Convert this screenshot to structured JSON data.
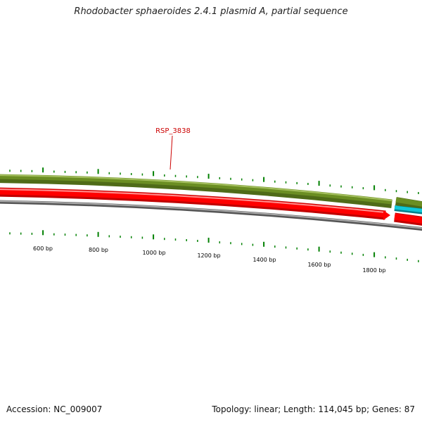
{
  "header": {
    "title": "Rhodobacter sphaeroides 2.4.1 plasmid A, partial sequence"
  },
  "footer": {
    "accession": "Accession: NC_009007",
    "summary": "Topology: linear; Length: 114,045 bp; Genes: 87"
  },
  "map": {
    "gene_label": "RSP_3838",
    "scale_labels": [
      "600 bp",
      "800 bp",
      "1000 bp",
      "1200 bp",
      "1400 bp",
      "1600 bp",
      "1800 bp"
    ],
    "colors": {
      "forward_track": "#6b8e23",
      "forward_highlight": "#9ab650",
      "reverse_track": "#ff0000",
      "reverse_highlight": "#ff8080",
      "cyan_feature": "#00c0d0",
      "sequence_line": "#808080",
      "tick": "#008000",
      "gene_label": "#cc0000"
    }
  }
}
